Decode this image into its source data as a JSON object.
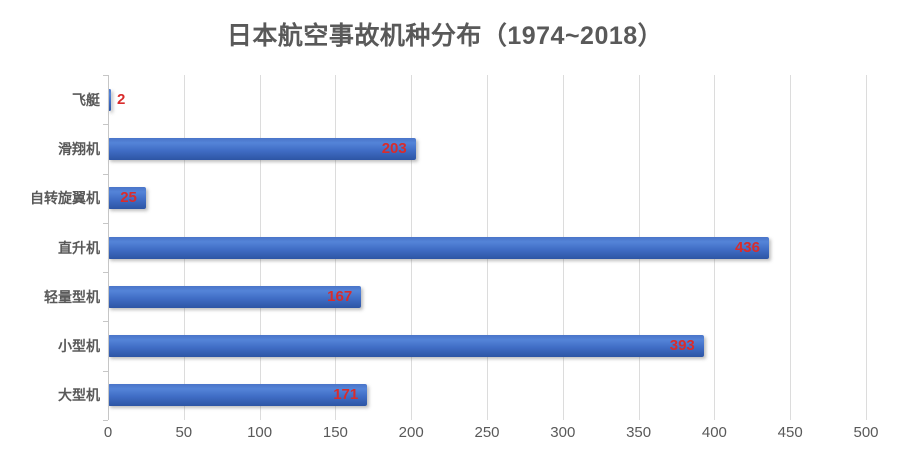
{
  "chart_data": {
    "type": "bar",
    "orientation": "horizontal",
    "title": "日本航空事故机种分布（1974~2018）",
    "categories": [
      "飞艇",
      "滑翔机",
      "自转旋翼机",
      "直升机",
      "轻量型机",
      "小型机",
      "大型机"
    ],
    "values": [
      2,
      203,
      25,
      436,
      167,
      393,
      171
    ],
    "xlabel": "",
    "ylabel": "",
    "xlim": [
      0,
      500
    ],
    "xticks": [
      0,
      50,
      100,
      150,
      200,
      250,
      300,
      350,
      400,
      450,
      500
    ],
    "grid": "vertical",
    "legend": "none",
    "value_labels": "shown, red, inside bar end (outside for smallest bar)",
    "colors": {
      "bar_gradient_top": "#4a74c8",
      "bar_gradient_upper": "#5484d8",
      "bar_gradient_mid": "#3f6cc4",
      "bar_gradient_bottom": "#2d55a4",
      "value_label": "#d92c2c",
      "title": "#595959",
      "axis_label": "#595959",
      "category_label": "#595959",
      "gridline": "#dcdcdc",
      "axis_line": "#c6c6c6",
      "background": "#ffffff"
    }
  }
}
